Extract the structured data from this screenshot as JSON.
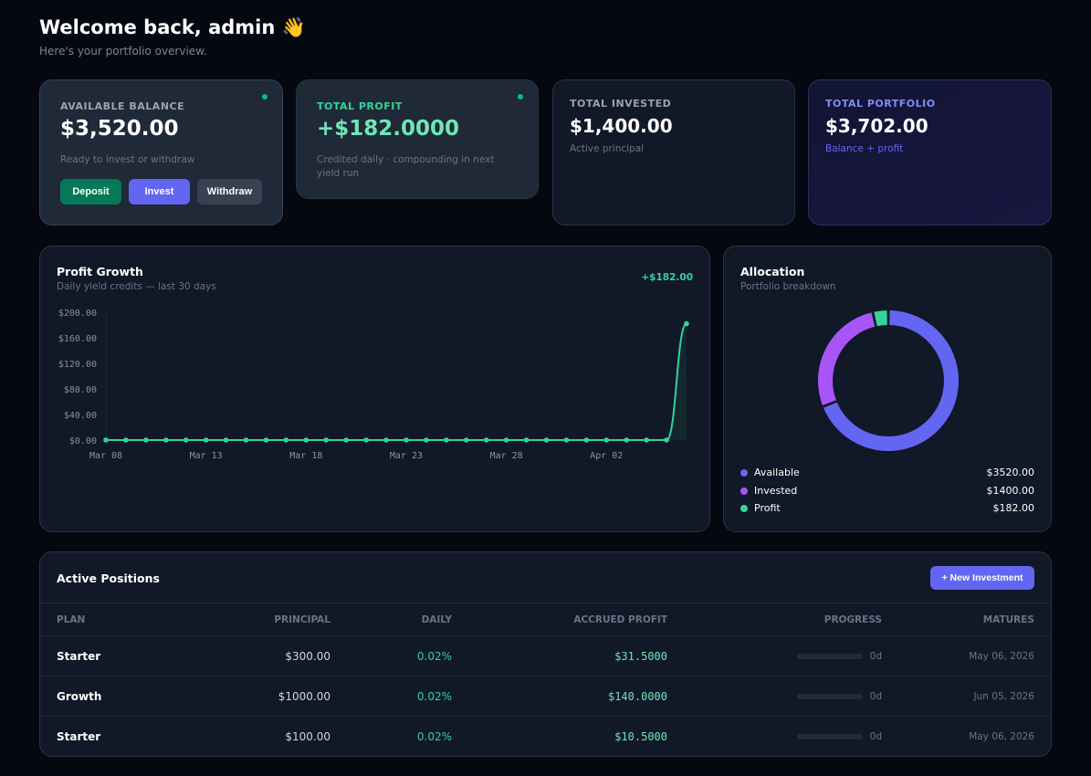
{
  "header": {
    "title": "Welcome back, admin 👋",
    "subtitle": "Here's your portfolio overview."
  },
  "stats": [
    {
      "label": "AVAILABLE BALANCE",
      "value": "$3,520.00",
      "note": "Ready to invest or withdraw"
    },
    {
      "label": "TOTAL PROFIT",
      "value": "+$182.0000",
      "note": "Credited daily · compounding in next yield run"
    },
    {
      "label": "TOTAL INVESTED",
      "value": "$1,400.00",
      "note": "Active principal"
    },
    {
      "label": "TOTAL PORTFOLIO",
      "value": "$3,702.00",
      "note": "Balance + profit"
    }
  ],
  "actions": {
    "deposit": "Deposit",
    "invest": "Invest",
    "withdraw": "Withdraw"
  },
  "profit_chart": {
    "title": "Profit Growth",
    "subtitle": "Daily yield credits — last 30 days",
    "total": "+$182.00"
  },
  "allocation": {
    "title": "Allocation",
    "subtitle": "Portfolio breakdown"
  },
  "chart_data": [
    {
      "type": "line",
      "title": "Profit Growth",
      "ylim": [
        0,
        200
      ],
      "yticks": [
        "$0.00",
        "$40.00",
        "$80.00",
        "$120.00",
        "$160.00",
        "$200.00"
      ],
      "xticks": [
        "Mar 08",
        "Mar 13",
        "Mar 18",
        "Mar 23",
        "Mar 28",
        "Apr 02"
      ],
      "x": [
        "Mar 08",
        "Mar 09",
        "Mar 10",
        "Mar 11",
        "Mar 12",
        "Mar 13",
        "Mar 14",
        "Mar 15",
        "Mar 16",
        "Mar 17",
        "Mar 18",
        "Mar 19",
        "Mar 20",
        "Mar 21",
        "Mar 22",
        "Mar 23",
        "Mar 24",
        "Mar 25",
        "Mar 26",
        "Mar 27",
        "Mar 28",
        "Mar 29",
        "Mar 30",
        "Mar 31",
        "Apr 01",
        "Apr 02",
        "Apr 03",
        "Apr 04",
        "Apr 05",
        "Apr 06"
      ],
      "values": [
        0,
        0,
        0,
        0,
        0,
        0,
        0,
        0,
        0,
        0,
        0,
        0,
        0,
        0,
        0,
        0,
        0,
        0,
        0,
        0,
        0,
        0,
        0,
        0,
        0,
        0,
        0,
        0,
        0,
        182
      ],
      "color": "#34d399"
    },
    {
      "type": "pie",
      "title": "Allocation",
      "categories": [
        "Available",
        "Invested",
        "Profit"
      ],
      "values": [
        3520,
        1400,
        182
      ],
      "labels": [
        "$3520.00",
        "$1400.00",
        "$182.00"
      ],
      "colors": [
        "#6366f1",
        "#a855f7",
        "#34d399"
      ]
    }
  ],
  "positions": {
    "title": "Active Positions",
    "new_button": "+ New Investment",
    "columns": [
      "PLAN",
      "PRINCIPAL",
      "DAILY",
      "ACCRUED PROFIT",
      "PROGRESS",
      "MATURES"
    ],
    "rows": [
      {
        "plan": "Starter",
        "principal": "$300.00",
        "daily": "0.02%",
        "accrued": "$31.5000",
        "progress": "0d",
        "progress_pct": 0,
        "matures": "May 06, 2026"
      },
      {
        "plan": "Growth",
        "principal": "$1000.00",
        "daily": "0.02%",
        "accrued": "$140.0000",
        "progress": "0d",
        "progress_pct": 0,
        "matures": "Jun 05, 2026"
      },
      {
        "plan": "Starter",
        "principal": "$100.00",
        "daily": "0.02%",
        "accrued": "$10.5000",
        "progress": "0d",
        "progress_pct": 0,
        "matures": "May 06, 2026"
      }
    ]
  }
}
